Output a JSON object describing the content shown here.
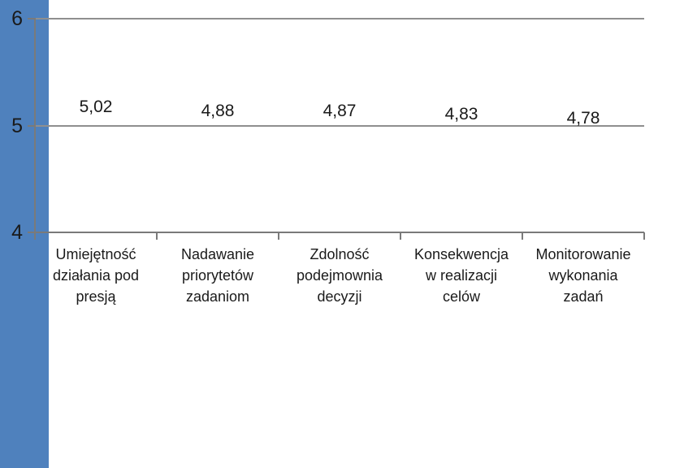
{
  "chart_data": {
    "type": "bar",
    "title": "",
    "xlabel": "",
    "ylabel": "",
    "categories": [
      "Umiejętność działania pod presją",
      "Nadawanie priorytetów zadaniom",
      "Zdolność podejmownia decyzji",
      "Konsekwencja w realizacji celów",
      "Monitorowanie wykonania zadań"
    ],
    "category_lines": [
      [
        "Umiejętność",
        "działania pod",
        "presją"
      ],
      [
        "Nadawanie",
        "priorytetów",
        "zadaniom"
      ],
      [
        "Zdolność",
        "podejmownia",
        "decyzji"
      ],
      [
        "Konsekwencja",
        "w realizacji",
        "celów"
      ],
      [
        "Monitorowanie",
        "wykonania",
        "zadań"
      ]
    ],
    "values": [
      5.02,
      4.88,
      4.87,
      4.83,
      4.78
    ],
    "value_labels": [
      "5,02",
      "4,88",
      "4,87",
      "4,83",
      "4,78"
    ],
    "ylim": [
      4,
      6
    ],
    "yticks": [
      4,
      5,
      6
    ],
    "ytick_labels": [
      "4",
      "5",
      "6"
    ],
    "grid": true,
    "legend": false,
    "colors": {
      "bar": "#4f81bd",
      "gridline": "#8f8f8f",
      "axis": "#7a7a7a",
      "text": "#1a1a1a",
      "background": "#ffffff"
    }
  }
}
